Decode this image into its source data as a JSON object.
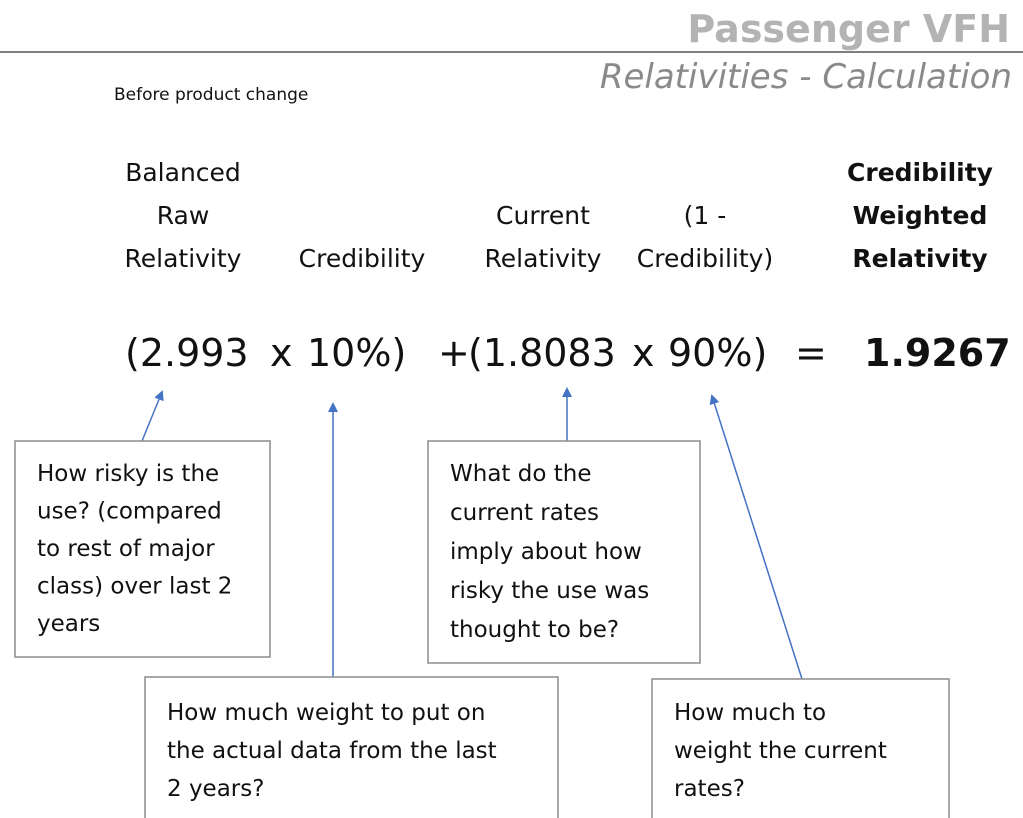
{
  "header": {
    "title": "Passenger VFH",
    "subtitle": "Relativities - Calculation"
  },
  "note": "Before product change",
  "columns": [
    {
      "lines": [
        "Balanced",
        "Raw",
        "Relativity"
      ]
    },
    {
      "lines": [
        "Credibility"
      ]
    },
    {
      "lines": [
        "Current",
        "Relativity"
      ]
    },
    {
      "lines": [
        "(1 -",
        "Credibility)"
      ]
    },
    {
      "lines": [
        "Credibility",
        "Weighted",
        "Relativity"
      ]
    }
  ],
  "formula": [
    "(2.993",
    "x",
    "10%)",
    "+",
    "(1.8083",
    "x",
    "90%)",
    "=",
    "1.9267"
  ],
  "boxes": [
    {
      "lines": [
        "How risky is the",
        "use? (compared",
        "to rest of major",
        "class) over last 2",
        "years"
      ]
    },
    {
      "lines": [
        "What do the",
        "current rates",
        "imply about how",
        "risky the use was",
        "thought to be?"
      ]
    },
    {
      "lines": [
        "How much weight to put on",
        "the actual data from the last",
        "2 years?"
      ]
    },
    {
      "lines": [
        "How much to",
        "weight the current",
        "rates?"
      ]
    }
  ]
}
